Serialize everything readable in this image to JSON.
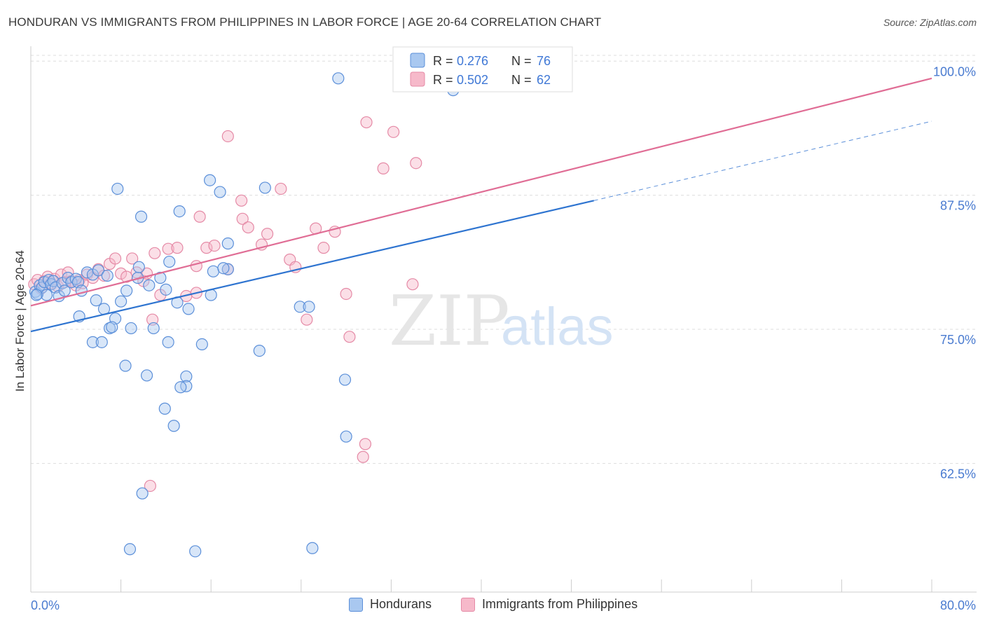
{
  "title": "HONDURAN VS IMMIGRANTS FROM PHILIPPINES IN LABOR FORCE | AGE 20-64 CORRELATION CHART",
  "source": "Source: ZipAtlas.com",
  "watermark": {
    "zip": "ZIP",
    "atlas": "atlas"
  },
  "colors": {
    "blue_fill": "#a9c8f0",
    "blue_stroke": "#5b8fd9",
    "blue_line": "#2e74d0",
    "pink_fill": "#f6b9ca",
    "pink_stroke": "#e58aa6",
    "pink_line": "#e06d95",
    "tick_text": "#4a7bd0",
    "grid": "#dddddd"
  },
  "legend": {
    "rows": [
      {
        "r_label": "R =",
        "r_value": "0.276",
        "n_label": "N =",
        "n_value": "76"
      },
      {
        "r_label": "R =",
        "r_value": "0.502",
        "n_label": "N =",
        "n_value": "62"
      }
    ]
  },
  "bottom_legend": {
    "series1": "Hondurans",
    "series2": "Immigrants from Philippines"
  },
  "chart_data": {
    "type": "scatter",
    "title": "HONDURAN VS IMMIGRANTS FROM PHILIPPINES IN LABOR FORCE | AGE 20-64 CORRELATION CHART",
    "xlabel": "",
    "ylabel": "In Labor Force | Age 20-64",
    "xlim": [
      0,
      80
    ],
    "ylim": [
      50.5,
      101
    ],
    "x_tick_labels": [
      "0.0%",
      "80.0%"
    ],
    "y_ticks": [
      62.5,
      75.0,
      87.5,
      100.0
    ],
    "y_tick_labels": [
      "62.5%",
      "75.0%",
      "87.5%",
      "100.0%"
    ],
    "grid": true,
    "legend_position": "top-center",
    "series": [
      {
        "name": "Hondurans",
        "r": 0.276,
        "n": 76,
        "trend": {
          "x0": 0,
          "y0": 74.8,
          "x1": 50,
          "y1": 87.0,
          "dash_x1": 80,
          "dash_y1": 94.4
        },
        "points": [
          [
            0.4,
            78.5
          ],
          [
            0.6,
            78.3
          ],
          [
            0.8,
            79.1
          ],
          [
            1.0,
            78.9
          ],
          [
            1.2,
            79.4
          ],
          [
            1.4,
            78.2
          ],
          [
            1.6,
            79.6
          ],
          [
            1.8,
            79.2
          ],
          [
            2.0,
            79.5
          ],
          [
            2.2,
            78.9
          ],
          [
            2.5,
            78.1
          ],
          [
            2.8,
            79.3
          ],
          [
            3.0,
            78.6
          ],
          [
            3.3,
            79.8
          ],
          [
            3.6,
            79.4
          ],
          [
            4.0,
            79.7
          ],
          [
            4.2,
            79.4
          ],
          [
            5.0,
            80.3
          ],
          [
            5.5,
            80.1
          ],
          [
            6.0,
            80.5
          ],
          [
            6.8,
            80.0
          ],
          [
            9.5,
            79.8
          ],
          [
            11.5,
            79.8
          ],
          [
            10.5,
            79.1
          ],
          [
            12.0,
            78.7
          ],
          [
            8.5,
            78.6
          ],
          [
            8.0,
            77.6
          ],
          [
            13.0,
            77.5
          ],
          [
            14.0,
            76.9
          ],
          [
            4.5,
            78.6
          ],
          [
            5.8,
            77.7
          ],
          [
            6.5,
            76.9
          ],
          [
            7.5,
            76.0
          ],
          [
            4.3,
            76.2
          ],
          [
            7.0,
            75.1
          ],
          [
            7.2,
            75.2
          ],
          [
            8.9,
            75.1
          ],
          [
            10.9,
            75.1
          ],
          [
            5.5,
            73.8
          ],
          [
            6.3,
            73.8
          ],
          [
            12.2,
            73.8
          ],
          [
            15.2,
            73.6
          ],
          [
            8.4,
            71.6
          ],
          [
            10.3,
            70.7
          ],
          [
            13.8,
            70.6
          ],
          [
            13.8,
            69.7
          ],
          [
            13.3,
            69.6
          ],
          [
            11.9,
            67.6
          ],
          [
            12.7,
            66.0
          ],
          [
            12.3,
            81.3
          ],
          [
            9.6,
            80.8
          ],
          [
            17.5,
            80.6
          ],
          [
            16.2,
            80.4
          ],
          [
            17.1,
            80.7
          ],
          [
            16.0,
            78.2
          ],
          [
            17.5,
            83.0
          ],
          [
            13.2,
            86.0
          ],
          [
            9.8,
            85.5
          ],
          [
            7.7,
            88.1
          ],
          [
            15.9,
            88.9
          ],
          [
            16.8,
            87.8
          ],
          [
            20.8,
            88.2
          ],
          [
            20.3,
            73.0
          ],
          [
            23.9,
            77.1
          ],
          [
            24.7,
            77.1
          ],
          [
            27.9,
            70.3
          ],
          [
            28.0,
            65.0
          ],
          [
            9.9,
            59.7
          ],
          [
            8.8,
            54.5
          ],
          [
            14.6,
            54.3
          ],
          [
            25.0,
            54.6
          ],
          [
            27.3,
            98.4
          ],
          [
            37.5,
            97.3
          ],
          [
            41.6,
            99.9
          ],
          [
            36.4,
            100.0
          ],
          [
            0.5,
            78.2
          ]
        ]
      },
      {
        "name": "Immigrants from Philippines",
        "r": 0.502,
        "n": 62,
        "trend": {
          "x0": 0,
          "y0": 77.2,
          "x1": 80,
          "y1": 98.4
        },
        "points": [
          [
            0.3,
            79.2
          ],
          [
            0.6,
            79.6
          ],
          [
            0.9,
            78.8
          ],
          [
            1.2,
            79.5
          ],
          [
            1.5,
            79.9
          ],
          [
            1.8,
            79.3
          ],
          [
            2.1,
            79.7
          ],
          [
            2.4,
            79.0
          ],
          [
            2.7,
            80.1
          ],
          [
            3.0,
            79.4
          ],
          [
            3.3,
            80.3
          ],
          [
            3.6,
            79.5
          ],
          [
            4.0,
            79.1
          ],
          [
            4.3,
            79.6
          ],
          [
            4.6,
            79.3
          ],
          [
            5.0,
            80.1
          ],
          [
            5.5,
            79.8
          ],
          [
            6.0,
            80.6
          ],
          [
            6.5,
            80.0
          ],
          [
            7.0,
            81.1
          ],
          [
            7.5,
            81.6
          ],
          [
            8.0,
            80.2
          ],
          [
            8.5,
            79.9
          ],
          [
            9.0,
            81.6
          ],
          [
            9.4,
            80.3
          ],
          [
            10.0,
            79.5
          ],
          [
            10.3,
            80.2
          ],
          [
            11.0,
            82.1
          ],
          [
            11.5,
            78.2
          ],
          [
            12.2,
            82.5
          ],
          [
            13.0,
            82.6
          ],
          [
            13.8,
            78.1
          ],
          [
            14.7,
            80.9
          ],
          [
            15.0,
            85.5
          ],
          [
            15.6,
            82.6
          ],
          [
            16.3,
            82.8
          ],
          [
            17.5,
            80.6
          ],
          [
            18.7,
            87.0
          ],
          [
            18.8,
            85.3
          ],
          [
            19.3,
            84.5
          ],
          [
            20.5,
            82.9
          ],
          [
            21.0,
            83.9
          ],
          [
            22.2,
            88.1
          ],
          [
            23.0,
            81.5
          ],
          [
            23.5,
            80.8
          ],
          [
            24.5,
            75.9
          ],
          [
            25.3,
            84.4
          ],
          [
            26.0,
            82.6
          ],
          [
            27.0,
            84.1
          ],
          [
            28.0,
            78.3
          ],
          [
            28.3,
            74.3
          ],
          [
            29.8,
            94.3
          ],
          [
            31.3,
            90.0
          ],
          [
            32.2,
            93.4
          ],
          [
            33.9,
            79.2
          ],
          [
            34.2,
            90.5
          ],
          [
            17.5,
            93.0
          ],
          [
            14.7,
            78.4
          ],
          [
            10.8,
            75.9
          ],
          [
            29.5,
            63.1
          ],
          [
            29.7,
            64.3
          ],
          [
            10.6,
            60.4
          ]
        ]
      }
    ]
  }
}
